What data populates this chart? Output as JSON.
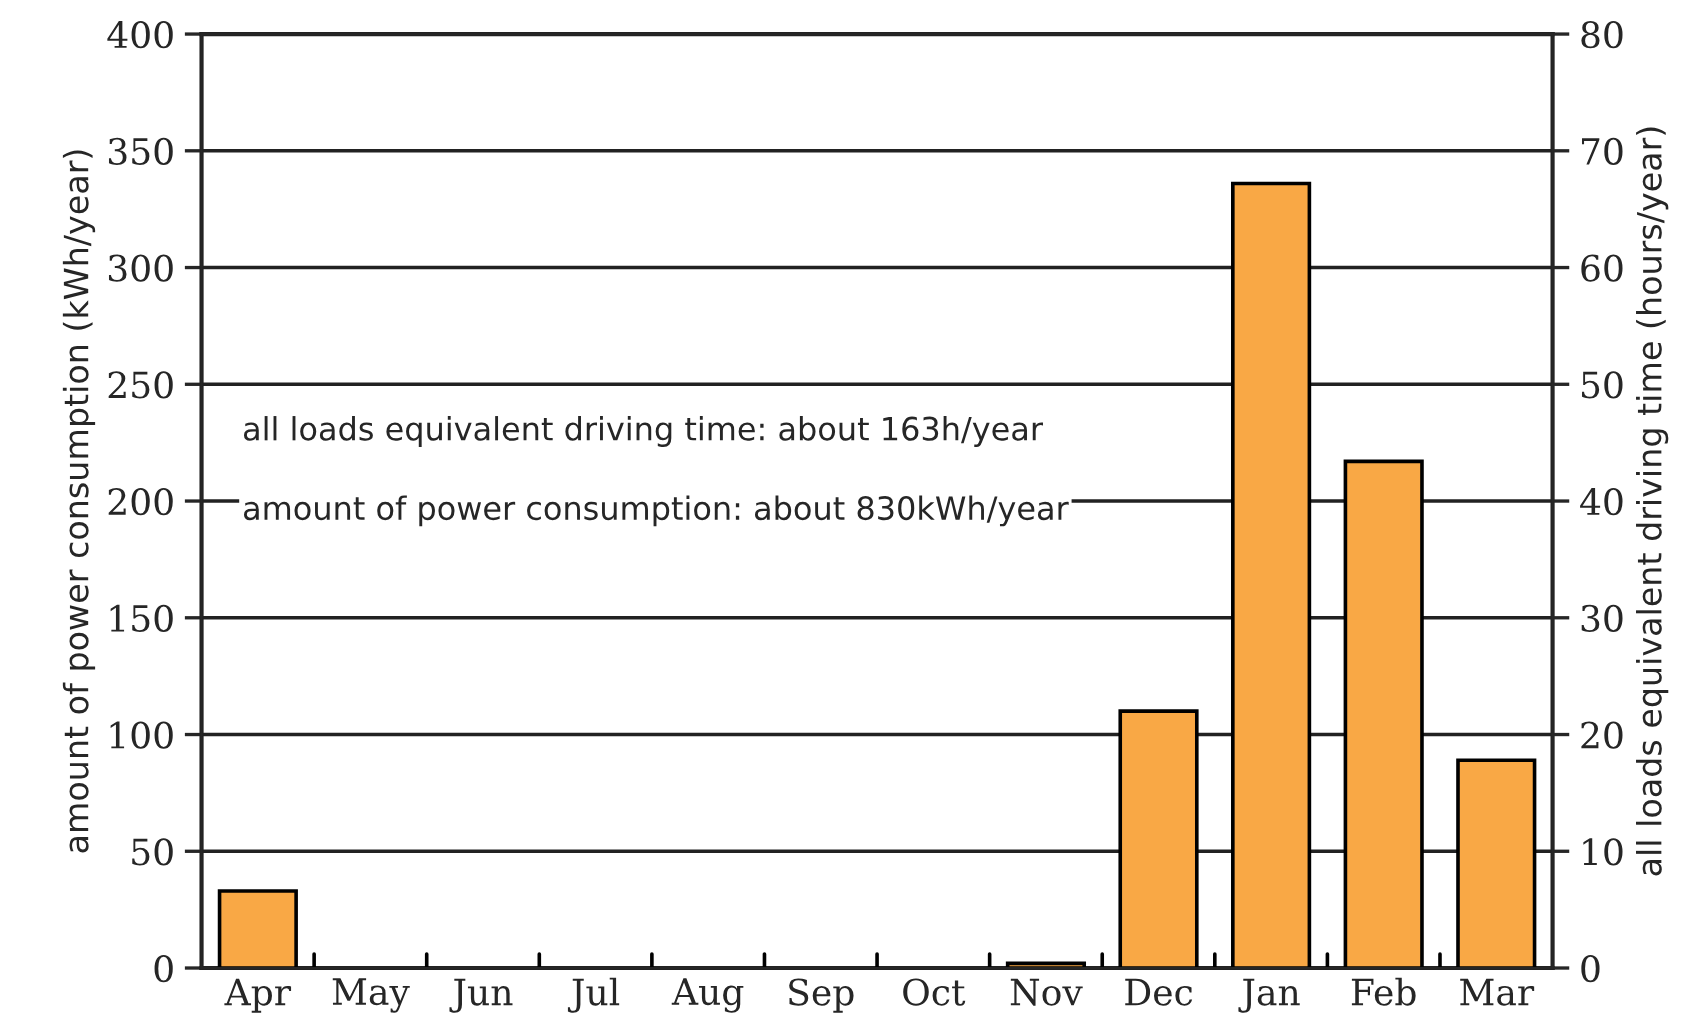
{
  "chart_data": {
    "type": "bar",
    "categories": [
      "Apr",
      "May",
      "Jun",
      "Jul",
      "Aug",
      "Sep",
      "Oct",
      "Nov",
      "Dec",
      "Jan",
      "Feb",
      "Mar"
    ],
    "values": [
      33,
      0,
      0,
      0,
      0,
      0,
      0,
      2,
      110,
      336,
      217,
      89
    ],
    "color": "#f9a845",
    "ylabel": "amount of power consumption (kWh/year)",
    "y2label": "all loads equivalent driving time (hours/year)",
    "ylim": [
      0,
      400
    ],
    "yticks": [
      0,
      50,
      100,
      150,
      200,
      250,
      300,
      350,
      400
    ],
    "y2lim": [
      0,
      80
    ],
    "y2ticks": [
      0,
      10,
      20,
      30,
      40,
      50,
      60,
      70,
      80
    ],
    "grid": "y",
    "legend": false,
    "annotations": [
      "all loads equivalent driving time: about 163h/year",
      "amount of power consumption: about 830kWh/year"
    ]
  }
}
